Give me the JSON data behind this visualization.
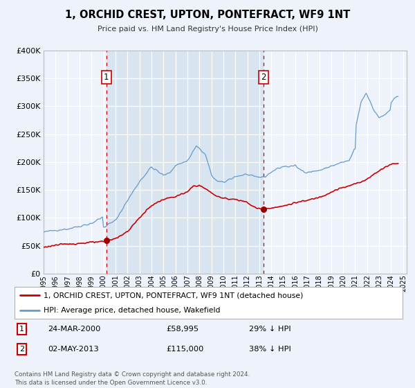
{
  "title": "1, ORCHID CREST, UPTON, PONTEFRACT, WF9 1NT",
  "subtitle": "Price paid vs. HM Land Registry's House Price Index (HPI)",
  "xlim": [
    1995.0,
    2025.3
  ],
  "ylim": [
    0,
    400000
  ],
  "yticks": [
    0,
    50000,
    100000,
    150000,
    200000,
    250000,
    300000,
    350000,
    400000
  ],
  "xticks": [
    1995,
    1996,
    1997,
    1998,
    1999,
    2000,
    2001,
    2002,
    2003,
    2004,
    2005,
    2006,
    2007,
    2008,
    2009,
    2010,
    2011,
    2012,
    2013,
    2014,
    2015,
    2016,
    2017,
    2018,
    2019,
    2020,
    2021,
    2022,
    2023,
    2024,
    2025
  ],
  "background_color": "#eef2fa",
  "shade_color": "#d8e4f0",
  "grid_color": "#ffffff",
  "sale1_x": 2000.23,
  "sale1_y": 58995,
  "sale1_label": "1",
  "sale1_date": "24-MAR-2000",
  "sale1_price": "£58,995",
  "sale1_hpi": "29% ↓ HPI",
  "sale2_x": 2013.33,
  "sale2_y": 115000,
  "sale2_label": "2",
  "sale2_date": "02-MAY-2013",
  "sale2_price": "£115,000",
  "sale2_hpi": "38% ↓ HPI",
  "line1_color": "#cc0000",
  "line2_color": "#6699cc",
  "marker_color": "#990000",
  "vline_color": "#cc0000",
  "legend1_label": "1, ORCHID CREST, UPTON, PONTEFRACT, WF9 1NT (detached house)",
  "legend2_label": "HPI: Average price, detached house, Wakefield",
  "footnote": "Contains HM Land Registry data © Crown copyright and database right 2024.\nThis data is licensed under the Open Government Licence v3.0."
}
